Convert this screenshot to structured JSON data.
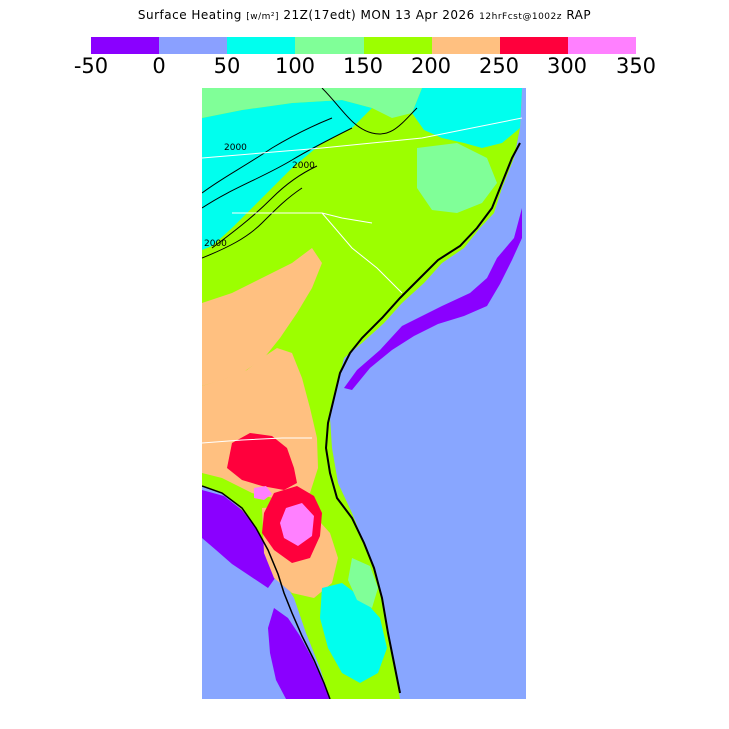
{
  "title": {
    "main": "Surface Heating",
    "units": "[w/m²]",
    "time": "21Z(17edt) MON 13 Apr 2026",
    "forecast": "12hrFcst@1002z",
    "model": "RAP"
  },
  "colorbar": {
    "colors": [
      "#8a00ff",
      "#8aa0ff",
      "#00ffee",
      "#80ff98",
      "#9cff00",
      "#ffc080",
      "#ff003c",
      "#ff80ff"
    ],
    "tick_labels": [
      "-50",
      "0",
      "50",
      "100",
      "150",
      "200",
      "250",
      "300",
      "350"
    ]
  },
  "map": {
    "ocean_color": "#88a6ff",
    "contour_label": "2000",
    "contour_labels": [
      "2000",
      "2000",
      "2000"
    ]
  }
}
